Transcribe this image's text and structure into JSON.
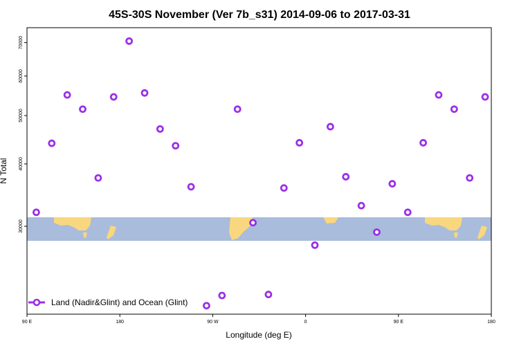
{
  "chart_data": {
    "type": "scatter",
    "title": "45S-30S November (Ver 7b_s31)   2014-09-06 to 2017-03-31",
    "xlabel": "Longitude (deg E)",
    "ylabel": "N Total",
    "y_scale": "log",
    "xlim": [
      90,
      540
    ],
    "ylim": [
      20000,
      75000
    ],
    "x_ticks": [
      {
        "value": 90,
        "label": "90 E"
      },
      {
        "value": 180,
        "label": "180"
      },
      {
        "value": 270,
        "label": "90 W"
      },
      {
        "value": 360,
        "label": "0"
      },
      {
        "value": 450,
        "label": "90 E"
      },
      {
        "value": 540,
        "label": "180"
      }
    ],
    "y_ticks": [
      {
        "value": 30000,
        "label": "30000"
      },
      {
        "value": 40000,
        "label": "40000"
      },
      {
        "value": 50000,
        "label": "50000"
      },
      {
        "value": 60000,
        "label": "60000"
      },
      {
        "value": 70000,
        "label": "70000"
      }
    ],
    "legend": {
      "label": "Land (Nadir&Glint) and Ocean (Glint)",
      "position": "bottom-left"
    },
    "marker_color": "#9b30e6",
    "series": [
      {
        "x": [
          99,
          114,
          129,
          144,
          159,
          174,
          189,
          204,
          219,
          234,
          249,
          264,
          279,
          294,
          309,
          324,
          339,
          354,
          369,
          384,
          399,
          414,
          429,
          444,
          459,
          474,
          489,
          504,
          519,
          534
        ],
        "y": [
          32000,
          44000,
          55000,
          51500,
          37500,
          54500,
          70500,
          55500,
          47000,
          43500,
          36000,
          20800,
          21800,
          51500,
          30500,
          21900,
          35800,
          44100,
          27500,
          47500,
          37700,
          33000,
          29200,
          36500,
          32000,
          44100,
          55000,
          51500,
          37500,
          54500
        ]
      }
    ]
  }
}
